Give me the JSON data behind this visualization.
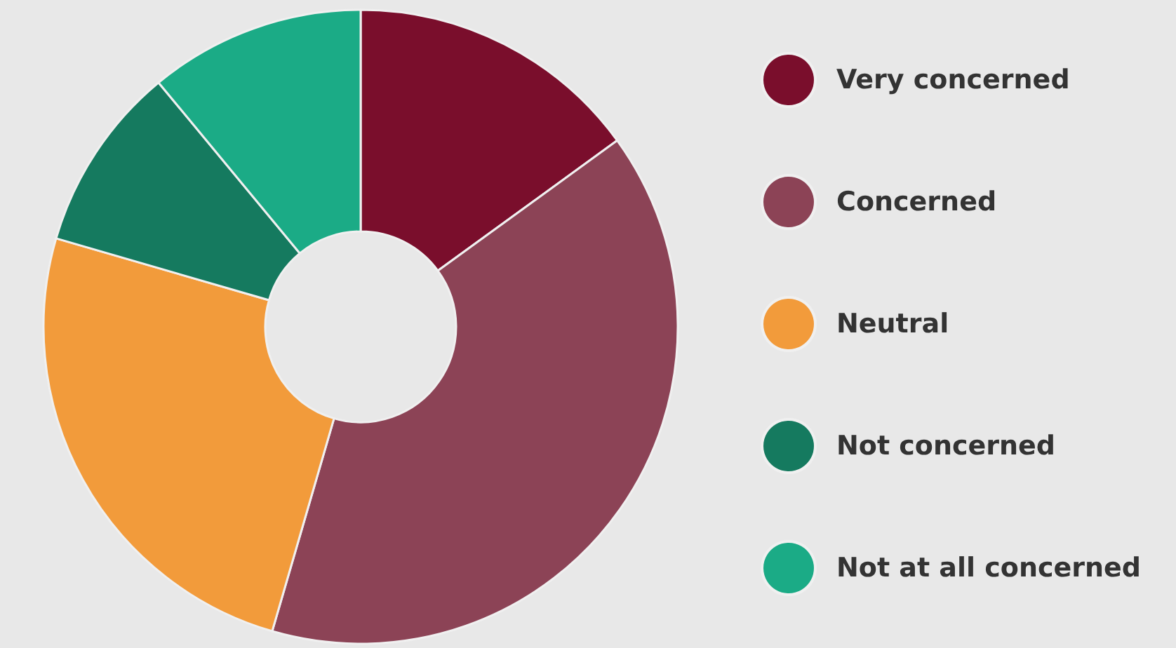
{
  "chart_data": {
    "type": "donut",
    "categories": [
      "Very concerned",
      "Concerned",
      "Neutral",
      "Not concerned",
      "Not at all concerned"
    ],
    "values": [
      15,
      39.5,
      25,
      9.5,
      11
    ],
    "colors": [
      "#7a0e2c",
      "#8c4356",
      "#f29b3b",
      "#157a5f",
      "#1bab86"
    ],
    "legend": "right"
  }
}
